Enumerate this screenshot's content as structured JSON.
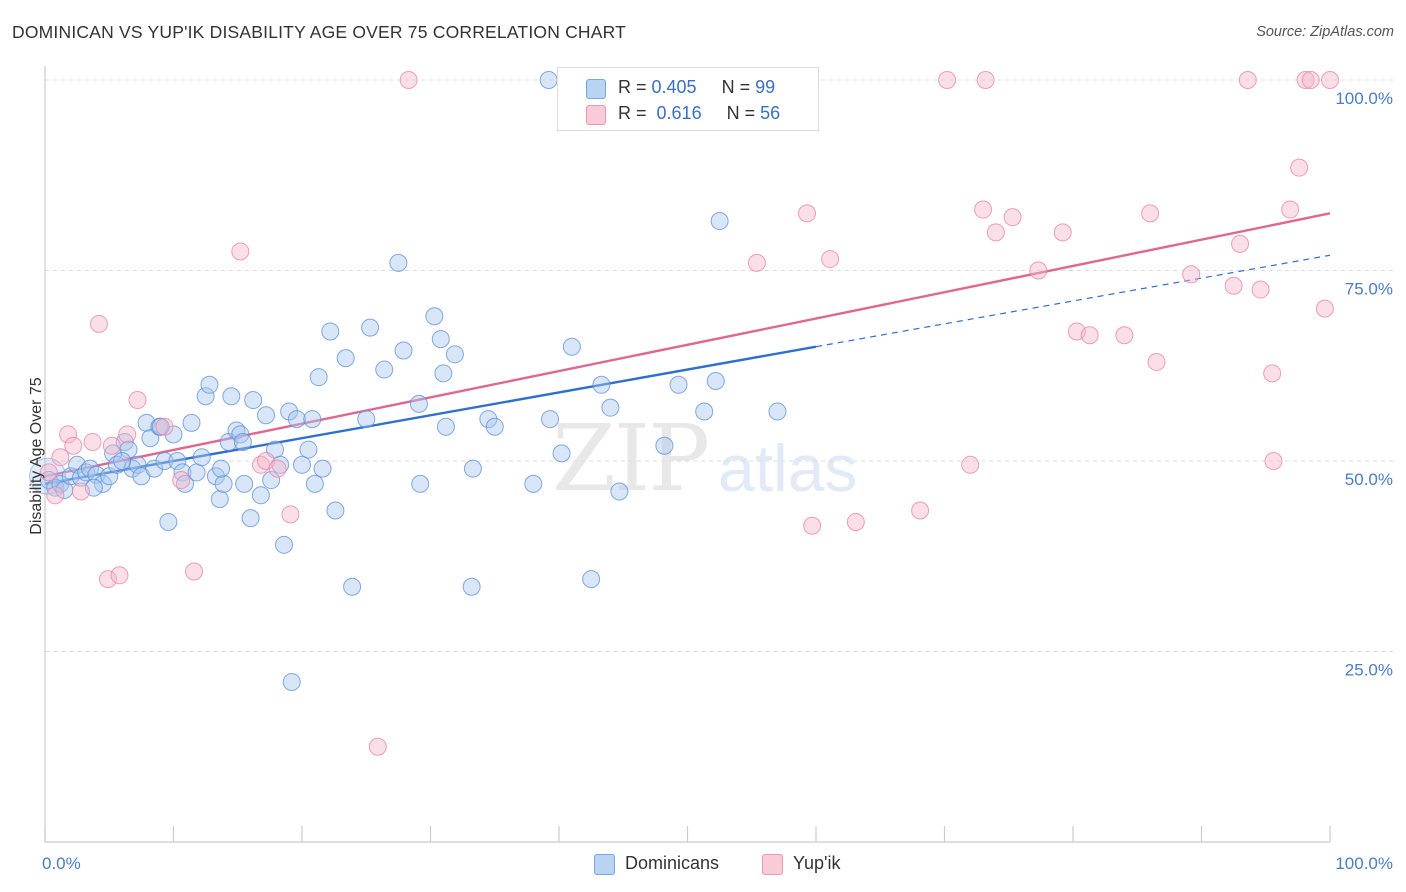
{
  "header": {
    "title": "DOMINICAN VS YUP'IK DISABILITY AGE OVER 75 CORRELATION CHART",
    "source": "Source: ZipAtlas.com"
  },
  "watermark": {
    "zip": "ZIP",
    "atlas": "atlas"
  },
  "legend": {
    "rows": [
      {
        "r_label": "R = ",
        "r_value": "0.405",
        "n_label": "N = ",
        "n_value": "99",
        "color": "#a9c8f0"
      },
      {
        "r_label": "R = ",
        "r_value": "0.616",
        "n_label": "N = ",
        "n_value": "56",
        "color": "#f5b8cb"
      }
    ]
  },
  "bottom_legend": {
    "dominicans": "Dominicans",
    "yupik": "Yup'ik"
  },
  "colors": {
    "blue_fill": "#a9c8f0",
    "blue_stroke": "#5b8fd6",
    "blue_line": "#2f6fce",
    "pink_fill": "#f5b8cb",
    "pink_stroke": "#e882a2",
    "pink_line": "#e06890"
  },
  "chart_data": {
    "type": "scatter",
    "title": "DOMINICAN VS YUP'IK DISABILITY AGE OVER 75 CORRELATION CHART",
    "xlabel": "",
    "ylabel": "Disability Age Over 75",
    "xlim": [
      0,
      100
    ],
    "ylim": [
      0,
      100
    ],
    "x_tick_labels": [
      "0.0%",
      "100.0%"
    ],
    "y_tick_labels": [
      "100.0%",
      "75.0%",
      "50.0%",
      "25.0%"
    ],
    "y_tick_values": [
      100,
      75,
      50,
      25
    ],
    "grid": true,
    "legend_position": "top-center",
    "series": [
      {
        "name": "Dominicans",
        "R": 0.405,
        "N": 99,
        "trend": {
          "x0": 0,
          "y0": 47.0,
          "x1": 60,
          "y1": 65.0,
          "dashed_to": 100,
          "dashed_y": 77.0
        },
        "points": [
          [
            0.3,
            47.5
          ],
          [
            0.8,
            46.5
          ],
          [
            1.2,
            47.0
          ],
          [
            1.5,
            46.2
          ],
          [
            2.0,
            48.0
          ],
          [
            2.5,
            49.5
          ],
          [
            2.8,
            47.8
          ],
          [
            3.2,
            48.5
          ],
          [
            3.5,
            49.0
          ],
          [
            4.0,
            48.2
          ],
          [
            4.5,
            47.0
          ],
          [
            5.0,
            48.0
          ],
          [
            5.3,
            51.0
          ],
          [
            5.6,
            49.5
          ],
          [
            6.2,
            52.5
          ],
          [
            6.5,
            51.5
          ],
          [
            6.8,
            49.0
          ],
          [
            7.2,
            49.5
          ],
          [
            7.5,
            48.0
          ],
          [
            7.9,
            55.0
          ],
          [
            8.2,
            53.0
          ],
          [
            8.5,
            49.0
          ],
          [
            8.9,
            54.5
          ],
          [
            9.3,
            50.0
          ],
          [
            9.6,
            42.0
          ],
          [
            10.0,
            53.5
          ],
          [
            10.3,
            50.0
          ],
          [
            10.7,
            48.5
          ],
          [
            10.9,
            47.0
          ],
          [
            11.4,
            55.0
          ],
          [
            11.8,
            48.5
          ],
          [
            12.2,
            50.5
          ],
          [
            12.5,
            58.5
          ],
          [
            12.8,
            60.0
          ],
          [
            13.3,
            48.0
          ],
          [
            13.6,
            45.0
          ],
          [
            13.9,
            47.0
          ],
          [
            14.3,
            52.5
          ],
          [
            14.5,
            58.5
          ],
          [
            14.9,
            54.0
          ],
          [
            15.2,
            53.5
          ],
          [
            15.5,
            47.0
          ],
          [
            16.0,
            42.5
          ],
          [
            16.2,
            58.0
          ],
          [
            16.8,
            45.5
          ],
          [
            17.2,
            56.0
          ],
          [
            17.6,
            47.5
          ],
          [
            17.9,
            51.5
          ],
          [
            18.3,
            49.5
          ],
          [
            18.6,
            39.0
          ],
          [
            19.0,
            56.5
          ],
          [
            19.2,
            21.0
          ],
          [
            19.6,
            55.5
          ],
          [
            20.0,
            49.5
          ],
          [
            20.5,
            51.5
          ],
          [
            21.0,
            47.0
          ],
          [
            21.3,
            61.0
          ],
          [
            21.6,
            49.0
          ],
          [
            22.2,
            67.0
          ],
          [
            22.6,
            43.5
          ],
          [
            23.4,
            63.5
          ],
          [
            23.9,
            33.5
          ],
          [
            25.0,
            55.5
          ],
          [
            25.3,
            67.5
          ],
          [
            26.4,
            62.0
          ],
          [
            27.5,
            76.0
          ],
          [
            27.9,
            64.5
          ],
          [
            29.1,
            57.5
          ],
          [
            29.2,
            47.0
          ],
          [
            30.3,
            69.0
          ],
          [
            30.8,
            66.0
          ],
          [
            31.0,
            61.5
          ],
          [
            31.2,
            54.5
          ],
          [
            31.9,
            64.0
          ],
          [
            33.2,
            33.5
          ],
          [
            33.3,
            49.0
          ],
          [
            34.5,
            55.5
          ],
          [
            35.0,
            54.5
          ],
          [
            38.0,
            47.0
          ],
          [
            39.2,
            100.0
          ],
          [
            39.3,
            55.5
          ],
          [
            40.2,
            51.0
          ],
          [
            41.0,
            65.0
          ],
          [
            42.5,
            34.5
          ],
          [
            43.3,
            60.0
          ],
          [
            44.0,
            57.0
          ],
          [
            44.7,
            46.0
          ],
          [
            48.2,
            52.0
          ],
          [
            49.3,
            60.0
          ],
          [
            51.3,
            56.5
          ],
          [
            52.2,
            60.5
          ],
          [
            52.5,
            81.5
          ],
          [
            57.0,
            56.5
          ],
          [
            9.0,
            54.5
          ],
          [
            13.7,
            49.0
          ],
          [
            20.8,
            55.5
          ],
          [
            15.4,
            52.5
          ],
          [
            6.0,
            50.0
          ],
          [
            3.8,
            46.5
          ]
        ]
      },
      {
        "name": "Yup'ik",
        "R": 0.616,
        "N": 56,
        "trend": {
          "x0": 0,
          "y0": 48.0,
          "x1": 100,
          "y1": 82.5
        },
        "points": [
          [
            0.3,
            48.5
          ],
          [
            0.8,
            45.5
          ],
          [
            1.2,
            50.5
          ],
          [
            1.8,
            53.5
          ],
          [
            2.2,
            52.0
          ],
          [
            2.8,
            46.0
          ],
          [
            3.7,
            52.5
          ],
          [
            4.2,
            68.0
          ],
          [
            4.9,
            34.5
          ],
          [
            5.2,
            52.0
          ],
          [
            5.8,
            35.0
          ],
          [
            6.4,
            53.5
          ],
          [
            7.2,
            58.0
          ],
          [
            9.3,
            54.5
          ],
          [
            10.6,
            47.5
          ],
          [
            11.6,
            35.5
          ],
          [
            15.2,
            77.5
          ],
          [
            16.8,
            49.5
          ],
          [
            17.2,
            50.0
          ],
          [
            18.1,
            49.0
          ],
          [
            19.1,
            43.0
          ],
          [
            25.9,
            12.5
          ],
          [
            28.3,
            100.0
          ],
          [
            55.4,
            76.0
          ],
          [
            57.4,
            100.0
          ],
          [
            59.3,
            82.5
          ],
          [
            59.7,
            41.5
          ],
          [
            61.1,
            76.5
          ],
          [
            63.1,
            42.0
          ],
          [
            68.1,
            43.5
          ],
          [
            70.2,
            100.0
          ],
          [
            72.0,
            49.5
          ],
          [
            73.0,
            83.0
          ],
          [
            73.2,
            100.0
          ],
          [
            74.0,
            80.0
          ],
          [
            75.3,
            82.0
          ],
          [
            77.3,
            75.0
          ],
          [
            79.2,
            80.0
          ],
          [
            80.3,
            67.0
          ],
          [
            81.3,
            66.5
          ],
          [
            84.0,
            66.5
          ],
          [
            86.0,
            82.5
          ],
          [
            86.5,
            63.0
          ],
          [
            89.2,
            74.5
          ],
          [
            92.5,
            73.0
          ],
          [
            93.0,
            78.5
          ],
          [
            93.6,
            100.0
          ],
          [
            94.6,
            72.5
          ],
          [
            95.5,
            61.5
          ],
          [
            95.6,
            50.0
          ],
          [
            96.9,
            83.0
          ],
          [
            97.6,
            88.5
          ],
          [
            98.1,
            100.0
          ],
          [
            98.5,
            100.0
          ],
          [
            100.0,
            100.0
          ],
          [
            99.6,
            70.0
          ]
        ]
      }
    ]
  }
}
